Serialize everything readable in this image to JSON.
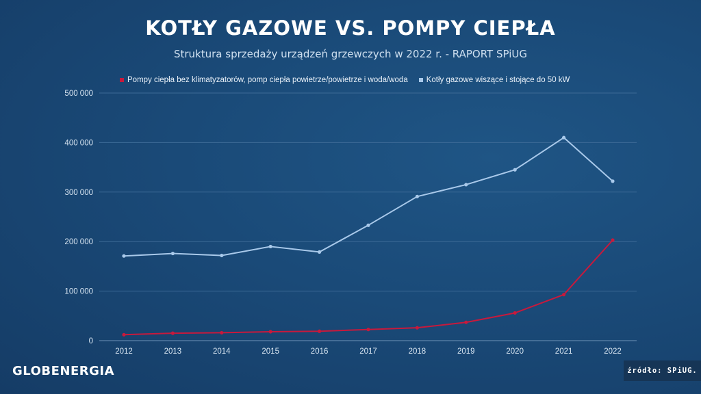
{
  "header": {
    "title": "KOTŁY GAZOWE VS. POMPY CIEPŁA",
    "subtitle": "Struktura sprzedaży urządzeń grzewczych w 2022 r. - RAPORT SPiUG"
  },
  "footer": {
    "brand": "GLOBENERGIA",
    "source": "źródło: SPiUG."
  },
  "colors": {
    "heat_pumps": "#c8193c",
    "gas_boilers": "#a9c9ea",
    "grid": "#3d6a96",
    "axis_text": "#d9e6f2"
  },
  "chart_data": {
    "type": "line",
    "categories": [
      "2012",
      "2013",
      "2014",
      "2015",
      "2016",
      "2017",
      "2018",
      "2019",
      "2020",
      "2021",
      "2022"
    ],
    "series": [
      {
        "name": "Pompy ciepła bez klimatyzatorów, pomp ciepła powietrze/powietrze i woda/woda",
        "color": "#c8193c",
        "values": [
          12000,
          15000,
          16000,
          18000,
          19000,
          22500,
          26000,
          37000,
          56000,
          93000,
          203000
        ]
      },
      {
        "name": "Kotły gazowe wiszące i stojące do 50 kW",
        "color": "#a9c9ea",
        "values": [
          171000,
          176000,
          172000,
          190000,
          179000,
          233000,
          291000,
          315000,
          345000,
          410000,
          322000
        ]
      }
    ],
    "yticks": [
      "0",
      "100 000",
      "200 000",
      "300 000",
      "400 000",
      "500 000"
    ],
    "ytick_values": [
      0,
      100000,
      200000,
      300000,
      400000,
      500000
    ],
    "ylim": [
      0,
      500000
    ],
    "grid": true,
    "legend_position": "top"
  }
}
